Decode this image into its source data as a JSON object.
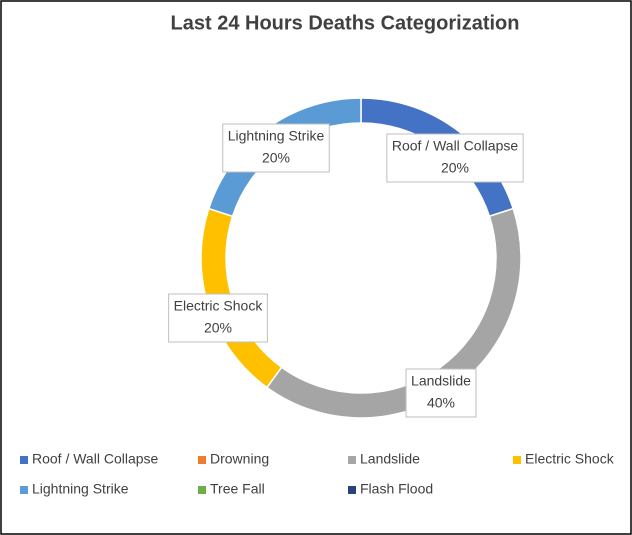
{
  "chart_data": {
    "type": "donut",
    "title": "Last 24 Hours Deaths Categorization",
    "categories": [
      "Roof / Wall Collapse",
      "Drowning",
      "Landslide",
      "Electric Shock",
      "Lightning Strike",
      "Tree Fall",
      "Flash Flood"
    ],
    "values": [
      20,
      0,
      40,
      20,
      20,
      0,
      0
    ],
    "value_labels": [
      "20%",
      null,
      "40%",
      "20%",
      "20%",
      null,
      null
    ],
    "colors": [
      "#4472c4",
      "#ed7d31",
      "#a5a5a5",
      "#ffc000",
      "#5b9bd5",
      "#70ad47",
      "#264478"
    ],
    "legend": "bottom"
  }
}
